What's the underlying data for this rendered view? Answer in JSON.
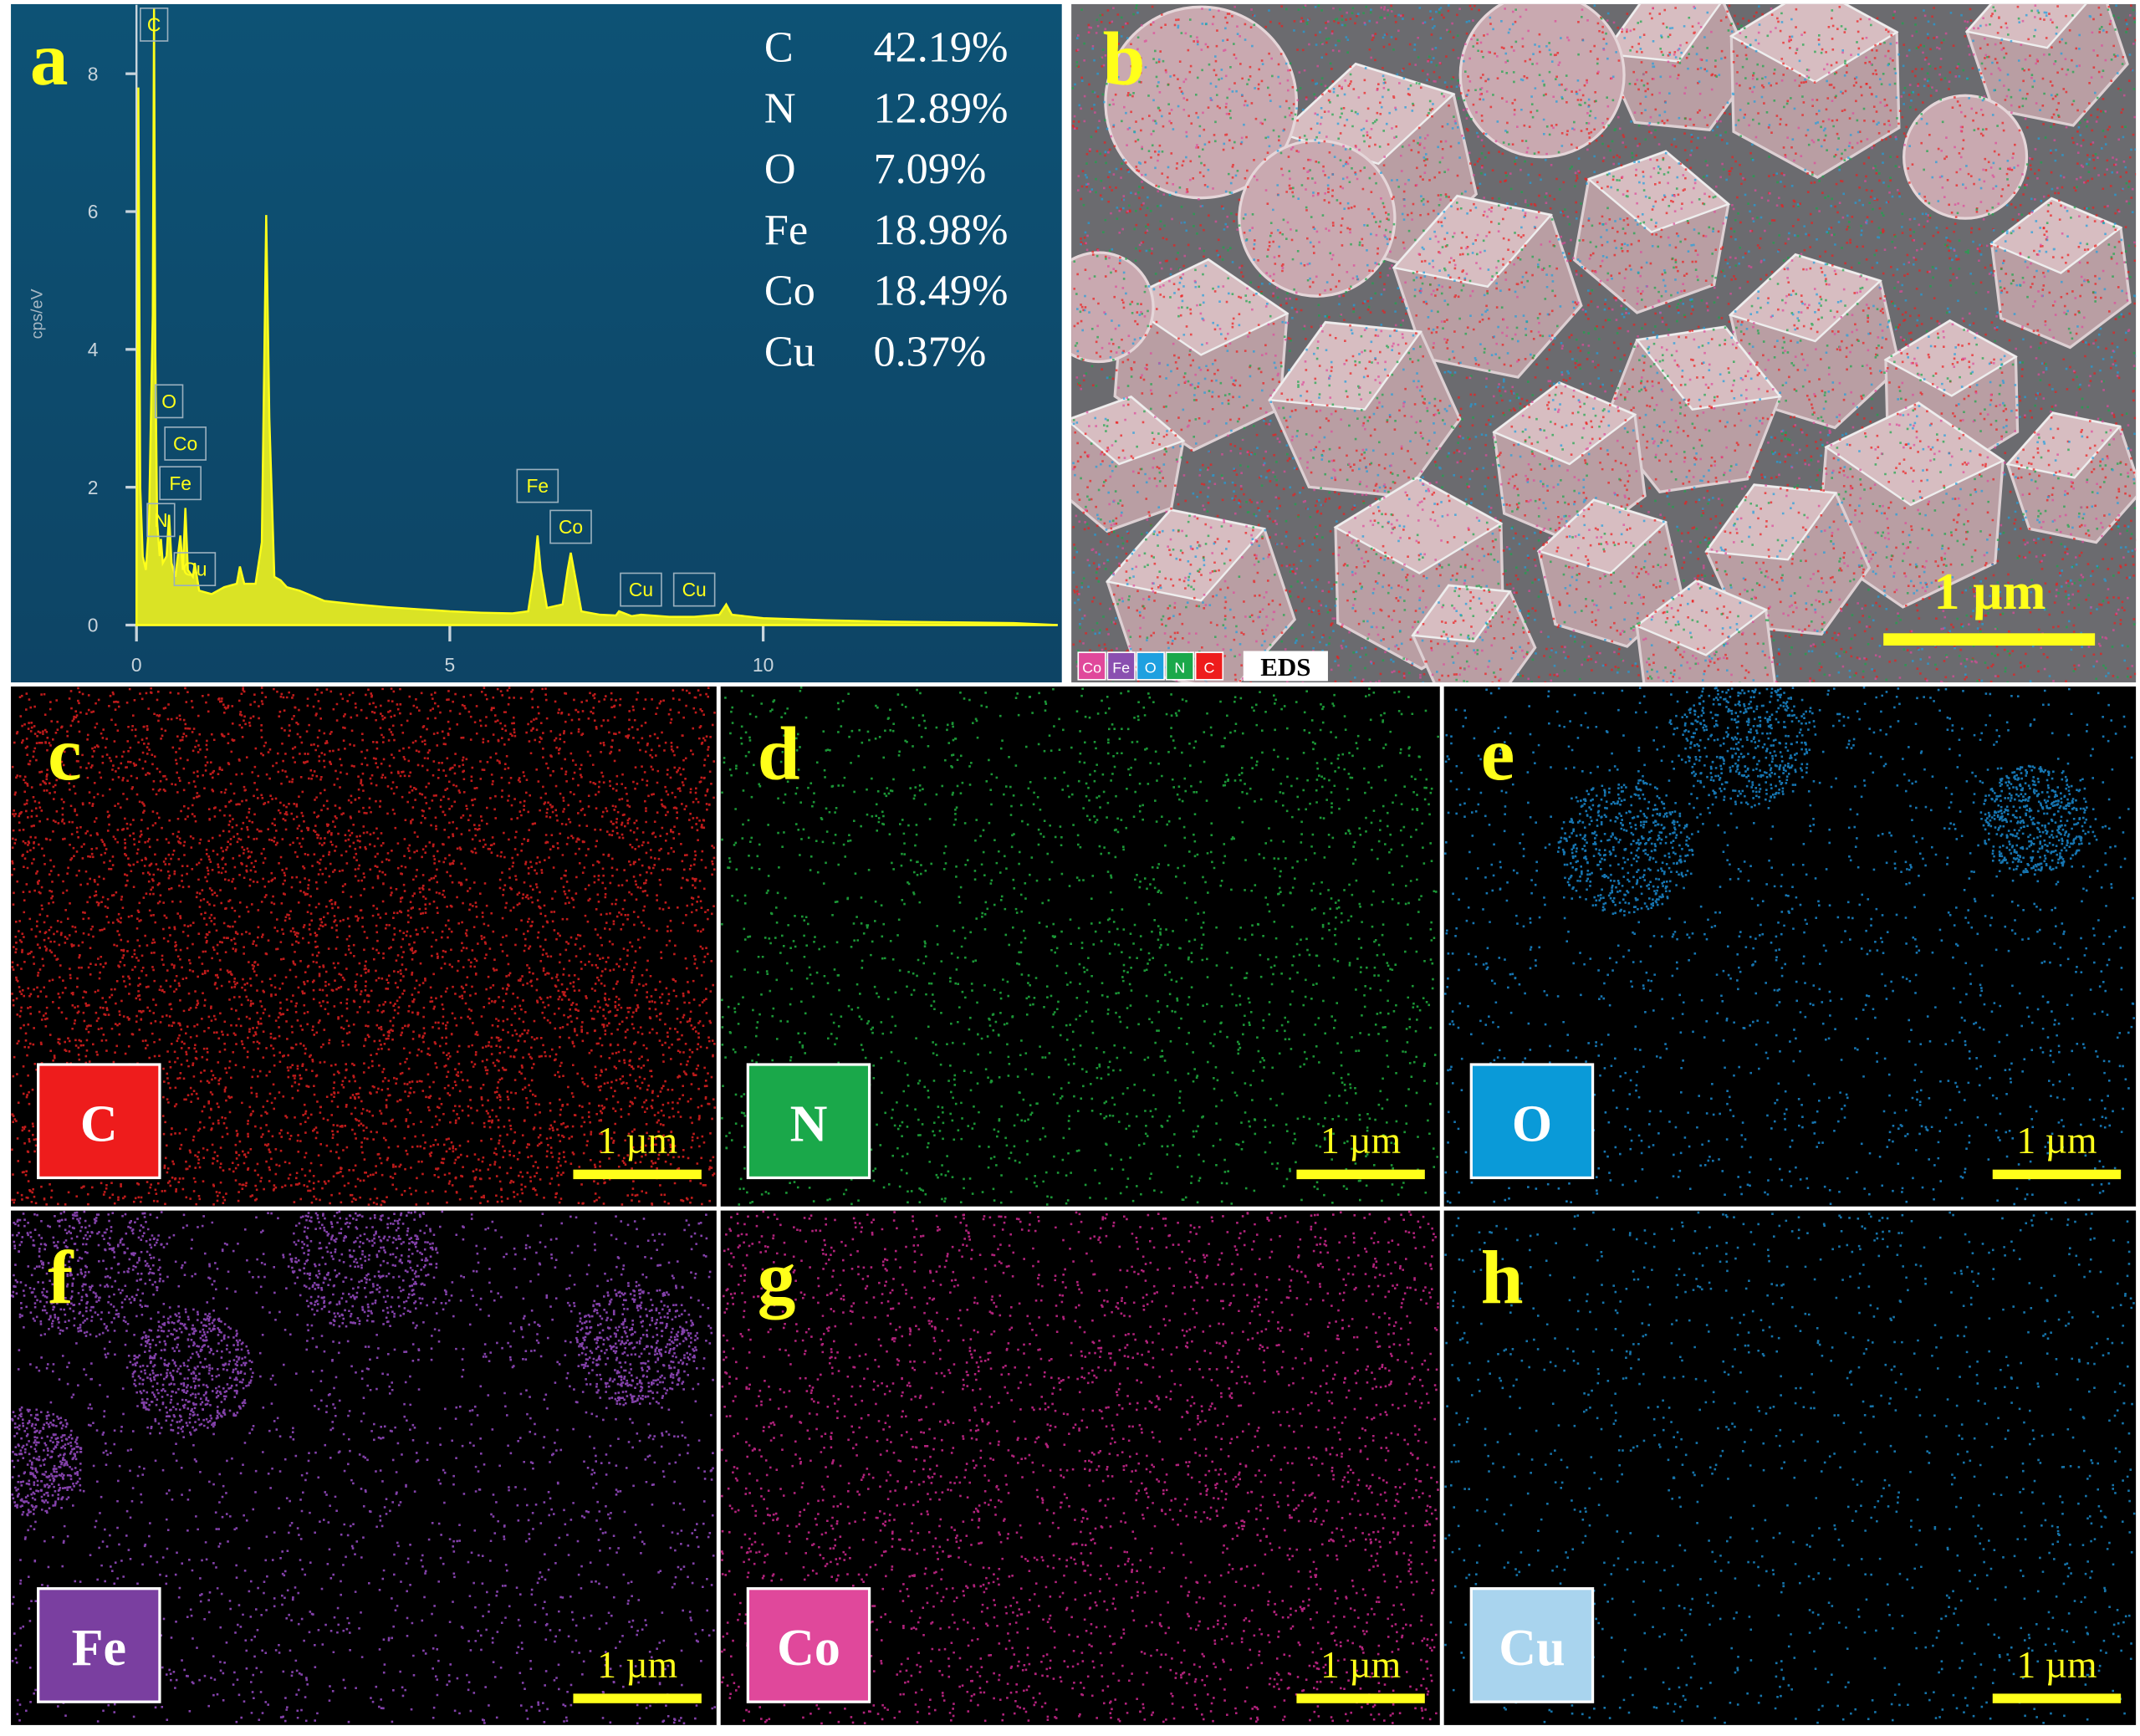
{
  "chart_data": {
    "type": "line",
    "panel_label": "a",
    "y_label": "cps/eV",
    "color": "#ffff1a",
    "xlim": [
      0,
      14.7
    ],
    "ylim": [
      0,
      9
    ],
    "xticks": [
      0,
      5,
      10
    ],
    "yticks": [
      0,
      2,
      4,
      6,
      8
    ],
    "x": [
      0,
      0.03,
      0.06,
      0.1,
      0.15,
      0.2,
      0.26,
      0.28,
      0.3,
      0.33,
      0.37,
      0.39,
      0.42,
      0.48,
      0.52,
      0.56,
      0.62,
      0.7,
      0.74,
      0.78,
      0.82,
      0.9,
      0.93,
      1.0,
      1.2,
      1.4,
      1.6,
      1.65,
      1.72,
      1.9,
      2.0,
      2.07,
      2.12,
      2.2,
      2.3,
      2.4,
      2.6,
      3,
      3.5,
      4,
      4.5,
      5,
      5.5,
      6,
      6.25,
      6.35,
      6.4,
      6.45,
      6.55,
      6.8,
      6.88,
      6.93,
      6.98,
      7.1,
      7.4,
      7.65,
      7.7,
      7.9,
      8.05,
      8.5,
      8.9,
      9.3,
      9.41,
      9.5,
      10,
      11,
      12,
      13,
      14,
      14.7
    ],
    "values": [
      0,
      7.8,
      2.0,
      1.0,
      0.8,
      1.5,
      4.5,
      8.95,
      4.0,
      1.5,
      1.0,
      1.25,
      0.9,
      1.0,
      1.6,
      0.9,
      0.7,
      1.3,
      0.8,
      1.7,
      0.8,
      0.7,
      0.9,
      0.5,
      0.45,
      0.55,
      0.6,
      0.85,
      0.6,
      0.6,
      1.2,
      5.95,
      3.0,
      0.7,
      0.65,
      0.55,
      0.5,
      0.35,
      0.3,
      0.26,
      0.23,
      0.2,
      0.18,
      0.17,
      0.2,
      0.8,
      1.3,
      0.8,
      0.25,
      0.3,
      0.8,
      1.05,
      0.8,
      0.2,
      0.15,
      0.14,
      0.2,
      0.13,
      0.15,
      0.12,
      0.12,
      0.15,
      0.3,
      0.15,
      0.1,
      0.07,
      0.05,
      0.04,
      0.03,
      0
    ],
    "annotations": [
      {
        "text": "C",
        "x": 0.28
      },
      {
        "text": "O",
        "x": 0.52
      },
      {
        "text": "Co",
        "x": 0.78
      },
      {
        "text": "Fe",
        "x": 0.7
      },
      {
        "text": "N",
        "x": 0.39
      },
      {
        "text": "Cu",
        "x": 0.93
      },
      {
        "text": "Fe",
        "x": 6.4
      },
      {
        "text": "Co",
        "x": 6.93
      },
      {
        "text": "Cu",
        "x": 8.05
      },
      {
        "text": "Cu",
        "x": 8.9
      }
    ],
    "composition": {
      "categories": [
        "C",
        "N",
        "O",
        "Fe",
        "Co",
        "Cu"
      ],
      "values": [
        42.19,
        12.89,
        7.09,
        18.98,
        18.49,
        0.37
      ],
      "value_labels": [
        "42.19%",
        "12.89%",
        "7.09%",
        "18.98%",
        "18.49%",
        "0.37%"
      ]
    }
  },
  "sem_panel": {
    "label": "b",
    "scale_bar": "1 µm",
    "legend": [
      "Co",
      "Fe",
      "O",
      "N",
      "C"
    ],
    "legend_colors": [
      "#e0489b",
      "#8a4fb0",
      "#1ea0e0",
      "#1aa84a",
      "#ee1c1c"
    ],
    "legend_title": "EDS"
  },
  "maps": [
    {
      "label": "c",
      "element": "C",
      "scale_bar": "1 µm",
      "color": "#ee1c1c",
      "dot_color": "#e02020"
    },
    {
      "label": "d",
      "element": "N",
      "scale_bar": "1 µm",
      "color": "#1aa84a",
      "dot_color": "#20b040"
    },
    {
      "label": "e",
      "element": "O",
      "scale_bar": "1 µm",
      "color": "#0a9ad8",
      "dot_color": "#1a8ad0"
    },
    {
      "label": "f",
      "element": "Fe",
      "scale_bar": "1 µm",
      "color": "#7a3fa0",
      "dot_color": "#9a4cc8"
    },
    {
      "label": "g",
      "element": "Co",
      "scale_bar": "1 µm",
      "color": "#e0489b",
      "dot_color": "#d02890"
    },
    {
      "label": "h",
      "element": "Cu",
      "scale_bar": "1 µm",
      "color": "#a9d4ee",
      "dot_color": "#1a88c8"
    }
  ]
}
